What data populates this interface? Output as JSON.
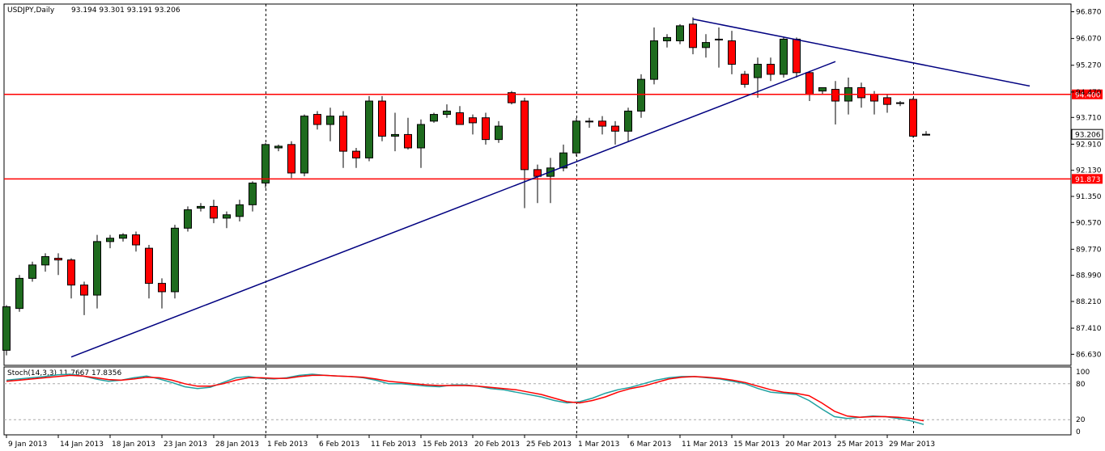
{
  "chart_data": [
    {
      "type": "candlestick",
      "symbol_label": "USDJPY,Daily",
      "ohlc_label": "93.194 93.301 93.191 93.206",
      "ylim": [
        86.3,
        97.1
      ],
      "y_ticks": [
        "96.870",
        "96.070",
        "95.270",
        "94.470",
        "93.710",
        "92.910",
        "92.130",
        "91.350",
        "90.570",
        "89.770",
        "88.990",
        "88.210",
        "87.410",
        "86.630"
      ],
      "x_ticks": [
        "9 Jan 2013",
        "14 Jan 2013",
        "18 Jan 2013",
        "23 Jan 2013",
        "28 Jan 2013",
        "1 Feb 2013",
        "6 Feb 2013",
        "11 Feb 2013",
        "15 Feb 2013",
        "20 Feb 2013",
        "25 Feb 2013",
        "1 Mar 2013",
        "6 Mar 2013",
        "11 Mar 2013",
        "15 Mar 2013",
        "20 Mar 2013",
        "25 Mar 2013",
        "29 Mar 2013"
      ],
      "bull_color": "#1e6b1e",
      "bear_color": "#ff0000",
      "candles": [
        {
          "o": 86.75,
          "h": 88.1,
          "l": 86.6,
          "c": 88.05
        },
        {
          "o": 88.0,
          "h": 89.0,
          "l": 87.9,
          "c": 88.9
        },
        {
          "o": 88.9,
          "h": 89.4,
          "l": 88.8,
          "c": 89.3
        },
        {
          "o": 89.3,
          "h": 89.65,
          "l": 89.1,
          "c": 89.55
        },
        {
          "o": 89.5,
          "h": 89.65,
          "l": 89.0,
          "c": 89.45
        },
        {
          "o": 89.45,
          "h": 89.5,
          "l": 88.3,
          "c": 88.7
        },
        {
          "o": 88.7,
          "h": 88.8,
          "l": 87.8,
          "c": 88.4
        },
        {
          "o": 88.4,
          "h": 90.2,
          "l": 88.0,
          "c": 90.0
        },
        {
          "o": 90.0,
          "h": 90.2,
          "l": 89.8,
          "c": 90.1
        },
        {
          "o": 90.1,
          "h": 90.25,
          "l": 90.0,
          "c": 90.2
        },
        {
          "o": 90.2,
          "h": 90.3,
          "l": 89.7,
          "c": 89.9
        },
        {
          "o": 89.8,
          "h": 89.9,
          "l": 88.3,
          "c": 88.75
        },
        {
          "o": 88.75,
          "h": 88.9,
          "l": 88.0,
          "c": 88.5
        },
        {
          "o": 88.5,
          "h": 90.5,
          "l": 88.3,
          "c": 90.4
        },
        {
          "o": 90.4,
          "h": 91.05,
          "l": 90.3,
          "c": 90.95
        },
        {
          "o": 91.0,
          "h": 91.15,
          "l": 90.9,
          "c": 91.05
        },
        {
          "o": 91.05,
          "h": 91.25,
          "l": 90.55,
          "c": 90.7
        },
        {
          "o": 90.7,
          "h": 90.9,
          "l": 90.4,
          "c": 90.8
        },
        {
          "o": 90.75,
          "h": 91.25,
          "l": 90.6,
          "c": 91.1
        },
        {
          "o": 91.1,
          "h": 91.8,
          "l": 90.9,
          "c": 91.75
        },
        {
          "o": 91.75,
          "h": 92.95,
          "l": 91.6,
          "c": 92.9
        },
        {
          "o": 92.8,
          "h": 92.9,
          "l": 92.7,
          "c": 92.85
        },
        {
          "o": 92.9,
          "h": 93.0,
          "l": 91.9,
          "c": 92.05
        },
        {
          "o": 92.05,
          "h": 93.8,
          "l": 91.95,
          "c": 93.75
        },
        {
          "o": 93.8,
          "h": 93.9,
          "l": 93.35,
          "c": 93.5
        },
        {
          "o": 93.5,
          "h": 94.0,
          "l": 93.0,
          "c": 93.75
        },
        {
          "o": 93.75,
          "h": 93.9,
          "l": 92.2,
          "c": 92.7
        },
        {
          "o": 92.7,
          "h": 92.8,
          "l": 92.2,
          "c": 92.5
        },
        {
          "o": 92.5,
          "h": 94.35,
          "l": 92.4,
          "c": 94.2
        },
        {
          "o": 94.2,
          "h": 94.35,
          "l": 93.0,
          "c": 93.15
        },
        {
          "o": 93.15,
          "h": 93.85,
          "l": 92.7,
          "c": 93.2
        },
        {
          "o": 93.2,
          "h": 93.7,
          "l": 92.75,
          "c": 92.8
        },
        {
          "o": 92.8,
          "h": 93.65,
          "l": 92.2,
          "c": 93.5
        },
        {
          "o": 93.6,
          "h": 93.85,
          "l": 93.55,
          "c": 93.8
        },
        {
          "o": 93.8,
          "h": 94.1,
          "l": 93.7,
          "c": 93.9
        },
        {
          "o": 93.85,
          "h": 94.05,
          "l": 93.5,
          "c": 93.5
        },
        {
          "o": 93.7,
          "h": 93.8,
          "l": 93.2,
          "c": 93.55
        },
        {
          "o": 93.7,
          "h": 93.85,
          "l": 92.9,
          "c": 93.05
        },
        {
          "o": 93.05,
          "h": 93.6,
          "l": 92.95,
          "c": 93.45
        },
        {
          "o": 94.45,
          "h": 94.5,
          "l": 94.1,
          "c": 94.15
        },
        {
          "o": 94.2,
          "h": 94.3,
          "l": 91.0,
          "c": 92.15
        },
        {
          "o": 92.15,
          "h": 92.3,
          "l": 91.15,
          "c": 91.95
        },
        {
          "o": 91.95,
          "h": 92.5,
          "l": 91.15,
          "c": 92.2
        },
        {
          "o": 92.2,
          "h": 92.9,
          "l": 92.1,
          "c": 92.65
        },
        {
          "o": 92.65,
          "h": 93.7,
          "l": 92.55,
          "c": 93.6
        },
        {
          "o": 93.6,
          "h": 93.7,
          "l": 93.4,
          "c": 93.6
        },
        {
          "o": 93.6,
          "h": 93.75,
          "l": 93.2,
          "c": 93.45
        },
        {
          "o": 93.45,
          "h": 93.6,
          "l": 92.9,
          "c": 93.3
        },
        {
          "o": 93.3,
          "h": 94.0,
          "l": 93.0,
          "c": 93.9
        },
        {
          "o": 93.9,
          "h": 95.0,
          "l": 93.7,
          "c": 94.85
        },
        {
          "o": 94.85,
          "h": 96.4,
          "l": 94.7,
          "c": 96.0
        },
        {
          "o": 96.0,
          "h": 96.2,
          "l": 95.8,
          "c": 96.1
        },
        {
          "o": 96.0,
          "h": 96.5,
          "l": 95.9,
          "c": 96.45
        },
        {
          "o": 96.5,
          "h": 96.7,
          "l": 95.6,
          "c": 95.8
        },
        {
          "o": 95.8,
          "h": 96.2,
          "l": 95.5,
          "c": 95.95
        },
        {
          "o": 96.05,
          "h": 96.4,
          "l": 95.2,
          "c": 96.05
        },
        {
          "o": 96.0,
          "h": 96.3,
          "l": 95.0,
          "c": 95.3
        },
        {
          "o": 95.0,
          "h": 95.1,
          "l": 94.6,
          "c": 94.7
        },
        {
          "o": 94.9,
          "h": 95.5,
          "l": 94.3,
          "c": 95.3
        },
        {
          "o": 95.3,
          "h": 95.5,
          "l": 94.8,
          "c": 95.0
        },
        {
          "o": 95.0,
          "h": 96.1,
          "l": 94.9,
          "c": 96.05
        },
        {
          "o": 96.05,
          "h": 96.1,
          "l": 94.9,
          "c": 95.05
        },
        {
          "o": 95.05,
          "h": 95.1,
          "l": 94.2,
          "c": 94.4
        },
        {
          "o": 94.5,
          "h": 94.6,
          "l": 94.4,
          "c": 94.6
        },
        {
          "o": 94.55,
          "h": 94.8,
          "l": 93.5,
          "c": 94.2
        },
        {
          "o": 94.2,
          "h": 94.9,
          "l": 93.8,
          "c": 94.6
        },
        {
          "o": 94.6,
          "h": 94.75,
          "l": 94.0,
          "c": 94.3
        },
        {
          "o": 94.4,
          "h": 94.5,
          "l": 93.8,
          "c": 94.2
        },
        {
          "o": 94.3,
          "h": 94.4,
          "l": 93.85,
          "c": 94.1
        },
        {
          "o": 94.15,
          "h": 94.2,
          "l": 94.05,
          "c": 94.15
        },
        {
          "o": 94.25,
          "h": 94.3,
          "l": 93.1,
          "c": 93.15
        },
        {
          "o": 93.194,
          "h": 93.301,
          "l": 93.191,
          "c": 93.206
        }
      ],
      "horizontal_levels": [
        {
          "value": 94.4,
          "label": "94.400",
          "color": "#ff0000"
        },
        {
          "value": 91.873,
          "label": "91.873",
          "color": "#ff0000"
        }
      ],
      "current_price": {
        "value": 93.206,
        "label": "93.206"
      },
      "trendlines": [
        {
          "from": {
            "index": 5,
            "value": 86.55
          },
          "to": {
            "index": 64,
            "value": 95.38
          },
          "color": "#000080"
        },
        {
          "from": {
            "index": 53,
            "value": 96.65
          },
          "to": {
            "index": 79,
            "value": 94.65
          },
          "color": "#000080"
        }
      ],
      "vertical_lines_at_index": [
        20,
        44,
        70
      ],
      "grid": false
    },
    {
      "type": "line",
      "label": "Stoch(14,3,3) 11.7667 17.8356",
      "ylim": [
        0,
        100
      ],
      "y_ticks": [
        "100",
        "80",
        "20",
        "0"
      ],
      "levels": [
        80,
        20
      ],
      "series": [
        {
          "color": "#20a0a0",
          "values": [
            86,
            88,
            90,
            92,
            95,
            96,
            93,
            88,
            84,
            86,
            90,
            93,
            88,
            82,
            75,
            72,
            74,
            82,
            90,
            92,
            89,
            88,
            90,
            94,
            96,
            94,
            93,
            92,
            90,
            86,
            80,
            80,
            78,
            76,
            75,
            78,
            78,
            76,
            72,
            70,
            66,
            62,
            58,
            52,
            48,
            50,
            56,
            64,
            70,
            74,
            80,
            86,
            90,
            92,
            92,
            90,
            88,
            84,
            80,
            72,
            66,
            64,
            62,
            52,
            38,
            25,
            22,
            24,
            26,
            25,
            22,
            18,
            12
          ]
        },
        {
          "color": "#ff0000",
          "values": [
            84,
            86,
            88,
            90,
            92,
            94,
            93,
            90,
            87,
            86,
            88,
            91,
            90,
            86,
            80,
            76,
            76,
            80,
            86,
            90,
            90,
            89,
            89,
            92,
            94,
            94,
            93,
            92,
            91,
            88,
            84,
            82,
            80,
            78,
            77,
            77,
            77,
            76,
            74,
            72,
            70,
            66,
            62,
            56,
            50,
            48,
            52,
            58,
            66,
            72,
            76,
            82,
            88,
            91,
            92,
            91,
            89,
            86,
            82,
            76,
            70,
            66,
            64,
            60,
            48,
            34,
            26,
            24,
            25,
            25,
            24,
            22,
            18
          ]
        }
      ]
    }
  ]
}
